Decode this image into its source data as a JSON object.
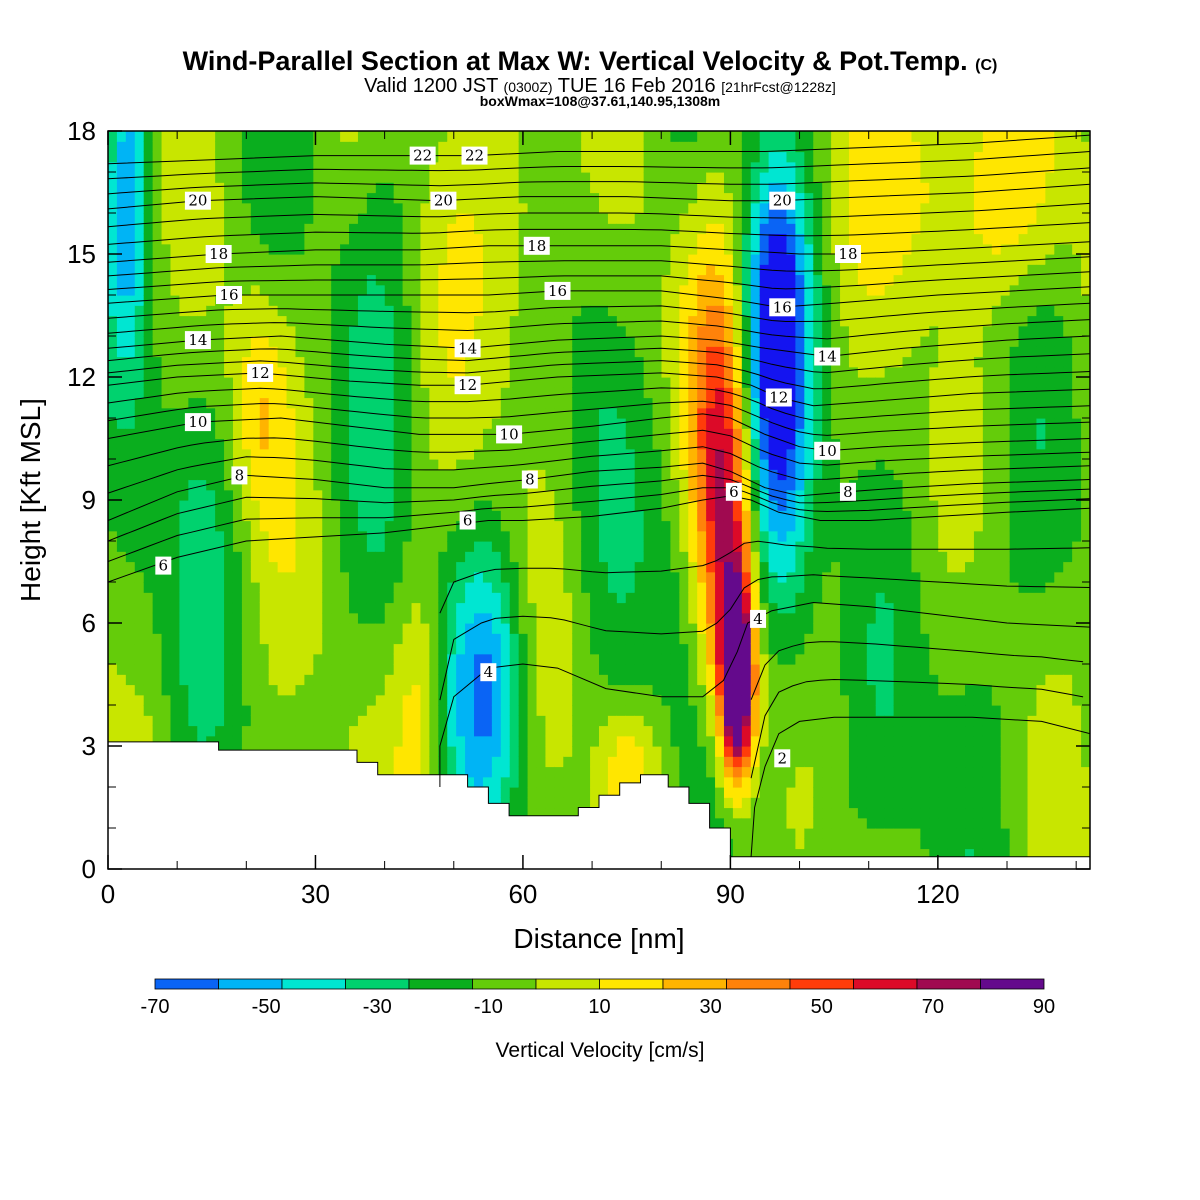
{
  "title": {
    "main": "Wind-Parallel Section at Max W: Vertical Velocity & Pot.Temp.",
    "copyright": "(C)",
    "valid_prefix": "Valid 1200 JST",
    "utc": "(0300Z)",
    "valid_date": "TUE 16 Feb 2016",
    "forecast": "[21hrFcst@1228z]",
    "box_info": "boxWmax=108@37.61,140.95,1308m"
  },
  "chart_data": {
    "type": "heatmap",
    "xlabel": "Distance [nm]",
    "ylabel": "Height [Kft MSL]",
    "xlim": [
      0,
      142
    ],
    "ylim": [
      0,
      18
    ],
    "x_ticks": [
      0,
      30,
      60,
      90,
      120
    ],
    "y_ticks": [
      0,
      3,
      6,
      9,
      12,
      15,
      18
    ],
    "x_tick_labels": [
      "0",
      "30",
      "60",
      "90",
      "120"
    ],
    "y_tick_labels": [
      "0",
      "3",
      "6",
      "9",
      "12",
      "15",
      "18"
    ],
    "colorbar": {
      "title": "Vertical Velocity [cm/s]",
      "labels": [
        "-70",
        "-50",
        "-30",
        "-10",
        "10",
        "30",
        "50",
        "70",
        "90"
      ],
      "colors": [
        "#1414f0",
        "#0a64f5",
        "#00b4f5",
        "#00e6d2",
        "#00d26e",
        "#0aae1e",
        "#64cc0a",
        "#c8e600",
        "#ffe600",
        "#ffb400",
        "#ff820a",
        "#ff3c0a",
        "#dc0a28",
        "#a00a50",
        "#640a8c"
      ]
    },
    "velocity_field": {
      "background_level": 6,
      "features": [
        {
          "x": 91,
          "y": 4.5,
          "sx": 1.6,
          "sy": 1.6,
          "amp": 10
        },
        {
          "x": 90,
          "y": 7.5,
          "sx": 2.8,
          "sy": 3.2,
          "amp": 5
        },
        {
          "x": 88,
          "y": 11.5,
          "sx": 3.5,
          "sy": 3.5,
          "amp": 3
        },
        {
          "x": 96,
          "y": 11,
          "sx": 3.5,
          "sy": 3.5,
          "amp": -5
        },
        {
          "x": 97,
          "y": 14,
          "sx": 3,
          "sy": 2.5,
          "amp": -3
        },
        {
          "x": 55,
          "y": 4.5,
          "sx": 4,
          "sy": 2.5,
          "amp": -4
        },
        {
          "x": 3,
          "y": 17,
          "sx": 2,
          "sy": 3,
          "amp": -4
        },
        {
          "x": 3,
          "y": 6,
          "sx": 3,
          "sy": 2,
          "amp": -1
        },
        {
          "x": 22,
          "y": 11.5,
          "sx": 3,
          "sy": 2,
          "amp": 2
        },
        {
          "x": 60,
          "y": 16,
          "sx": 6,
          "sy": 3,
          "amp": 2
        },
        {
          "x": 118,
          "y": 17,
          "sx": 6,
          "sy": 2,
          "amp": 2
        },
        {
          "x": 130,
          "y": 16.5,
          "sx": 6,
          "sy": 2,
          "amp": 2
        },
        {
          "x": 45,
          "y": 4,
          "sx": 2.5,
          "sy": 2.5,
          "amp": 2
        },
        {
          "x": 75,
          "y": 2.5,
          "sx": 3,
          "sy": 1,
          "amp": 2
        },
        {
          "x": 40,
          "y": 13,
          "sx": 4,
          "sy": 6,
          "amp": -1
        },
        {
          "x": 70,
          "y": 14,
          "sx": 4,
          "sy": 6,
          "amp": -1
        },
        {
          "x": 83,
          "y": 7,
          "sx": 3,
          "sy": 3,
          "amp": -1
        },
        {
          "x": 125,
          "y": 6,
          "sx": 5,
          "sy": 3,
          "amp": -1
        },
        {
          "x": 110,
          "y": 2,
          "sx": 10,
          "sy": 2,
          "amp": -0.5
        },
        {
          "x": 13,
          "y": 9,
          "sx": 4,
          "sy": 5,
          "amp": -1
        },
        {
          "x": 100,
          "y": 6,
          "sx": 3,
          "sy": 3,
          "amp": -1
        }
      ]
    },
    "terrain": [
      [
        0,
        3.1
      ],
      [
        16,
        3.1
      ],
      [
        16,
        2.9
      ],
      [
        36,
        2.9
      ],
      [
        36,
        2.6
      ],
      [
        39,
        2.6
      ],
      [
        39,
        2.3
      ],
      [
        52,
        2.3
      ],
      [
        52,
        2.0
      ],
      [
        55,
        2.0
      ],
      [
        55,
        1.6
      ],
      [
        58,
        1.6
      ],
      [
        58,
        1.3
      ],
      [
        68,
        1.3
      ],
      [
        68,
        1.5
      ],
      [
        71,
        1.5
      ],
      [
        71,
        1.8
      ],
      [
        74,
        1.8
      ],
      [
        74,
        2.1
      ],
      [
        77,
        2.1
      ],
      [
        77,
        2.3
      ],
      [
        81,
        2.3
      ],
      [
        81,
        2.0
      ],
      [
        84,
        2.0
      ],
      [
        84,
        1.6
      ],
      [
        87,
        1.6
      ],
      [
        87,
        1.0
      ],
      [
        90,
        1.0
      ],
      [
        90,
        0.3
      ],
      [
        142,
        0.3
      ]
    ],
    "contour_labels": [
      {
        "text": "22",
        "x": 45.5,
        "y": 17.4
      },
      {
        "text": "22",
        "x": 53,
        "y": 17.4
      },
      {
        "text": "20",
        "x": 13,
        "y": 16.3
      },
      {
        "text": "20",
        "x": 48.5,
        "y": 16.3
      },
      {
        "text": "20",
        "x": 97.5,
        "y": 16.3
      },
      {
        "text": "18",
        "x": 16,
        "y": 15.0
      },
      {
        "text": "18",
        "x": 62,
        "y": 15.2
      },
      {
        "text": "18",
        "x": 107,
        "y": 15.0
      },
      {
        "text": "16",
        "x": 17.5,
        "y": 14.0
      },
      {
        "text": "16",
        "x": 65,
        "y": 14.1
      },
      {
        "text": "16",
        "x": 97.5,
        "y": 13.7
      },
      {
        "text": "14",
        "x": 13,
        "y": 12.9
      },
      {
        "text": "14",
        "x": 52,
        "y": 12.7
      },
      {
        "text": "14",
        "x": 104,
        "y": 12.5
      },
      {
        "text": "12",
        "x": 22,
        "y": 12.1
      },
      {
        "text": "12",
        "x": 52,
        "y": 11.8
      },
      {
        "text": "12",
        "x": 97,
        "y": 11.5
      },
      {
        "text": "10",
        "x": 13,
        "y": 10.9
      },
      {
        "text": "10",
        "x": 58,
        "y": 10.6
      },
      {
        "text": "10",
        "x": 104,
        "y": 10.2
      },
      {
        "text": "8",
        "x": 19,
        "y": 9.6
      },
      {
        "text": "8",
        "x": 61,
        "y": 9.5
      },
      {
        "text": "8",
        "x": 107,
        "y": 9.2
      },
      {
        "text": "6",
        "x": 8,
        "y": 7.4
      },
      {
        "text": "6",
        "x": 52,
        "y": 8.5
      },
      {
        "text": "6",
        "x": 90.5,
        "y": 9.2
      },
      {
        "text": "4",
        "x": 55,
        "y": 4.8
      },
      {
        "text": "4",
        "x": 94,
        "y": 6.1
      },
      {
        "text": "2",
        "x": 97.5,
        "y": 2.7
      }
    ],
    "isentropes": [
      {
        "level": 2,
        "points": [
          [
            93,
            0.3
          ],
          [
            93.5,
            1.5
          ],
          [
            95,
            2.5
          ],
          [
            97,
            3.3
          ],
          [
            100,
            3.6
          ],
          [
            105,
            3.7
          ],
          [
            115,
            3.7
          ],
          [
            125,
            3.7
          ],
          [
            135,
            3.6
          ],
          [
            142,
            3.3
          ]
        ]
      },
      {
        "level": 4,
        "points": [
          [
            48,
            2.0
          ],
          [
            48,
            3
          ],
          [
            50,
            4.2
          ],
          [
            55,
            4.9
          ],
          [
            60,
            5.0
          ],
          [
            65,
            4.9
          ],
          [
            72,
            4.4
          ],
          [
            80,
            4.2
          ],
          [
            86,
            4.2
          ],
          [
            89,
            4.6
          ],
          [
            91,
            5.3
          ],
          [
            92.5,
            6.0
          ],
          [
            96,
            6.3
          ],
          [
            102,
            6.5
          ],
          [
            110,
            6.4
          ],
          [
            120,
            6.2
          ],
          [
            130,
            6.0
          ],
          [
            142,
            5.9
          ]
        ]
      },
      {
        "level": 6,
        "points": [
          [
            0,
            7.0
          ],
          [
            10,
            7.6
          ],
          [
            20,
            8.0
          ],
          [
            30,
            8.1
          ],
          [
            40,
            8.2
          ],
          [
            50,
            8.4
          ],
          [
            55,
            8.5
          ],
          [
            60,
            8.5
          ],
          [
            70,
            8.6
          ],
          [
            80,
            8.8
          ],
          [
            86,
            9.0
          ],
          [
            90,
            9.1
          ],
          [
            93,
            9.0
          ],
          [
            97,
            8.7
          ],
          [
            103,
            8.5
          ],
          [
            110,
            8.5
          ],
          [
            120,
            8.6
          ],
          [
            130,
            8.7
          ],
          [
            142,
            8.8
          ]
        ]
      },
      {
        "level": 8,
        "points": [
          [
            0,
            8.5
          ],
          [
            10,
            9.2
          ],
          [
            20,
            9.6
          ],
          [
            30,
            9.5
          ],
          [
            40,
            9.3
          ],
          [
            50,
            9.3
          ],
          [
            55,
            9.4
          ],
          [
            61,
            9.5
          ],
          [
            70,
            9.7
          ],
          [
            80,
            9.8
          ],
          [
            86,
            9.9
          ],
          [
            90,
            9.7
          ],
          [
            95,
            9.3
          ],
          [
            100,
            9.1
          ],
          [
            107,
            9.2
          ],
          [
            115,
            9.3
          ],
          [
            125,
            9.4
          ],
          [
            142,
            9.5
          ]
        ]
      },
      {
        "level": 10,
        "points": [
          [
            0,
            10.5
          ],
          [
            13,
            10.9
          ],
          [
            25,
            11.0
          ],
          [
            35,
            10.8
          ],
          [
            45,
            10.6
          ],
          [
            58,
            10.6
          ],
          [
            70,
            10.8
          ],
          [
            80,
            11.0
          ],
          [
            86,
            11.1
          ],
          [
            90,
            11.0
          ],
          [
            95,
            10.6
          ],
          [
            100,
            10.3
          ],
          [
            104,
            10.2
          ],
          [
            112,
            10.3
          ],
          [
            125,
            10.4
          ],
          [
            142,
            10.5
          ]
        ]
      },
      {
        "level": 12,
        "points": [
          [
            0,
            11.8
          ],
          [
            10,
            12.0
          ],
          [
            22,
            12.1
          ],
          [
            35,
            11.9
          ],
          [
            45,
            11.8
          ],
          [
            52,
            11.8
          ],
          [
            65,
            12.0
          ],
          [
            80,
            12.1
          ],
          [
            88,
            12.0
          ],
          [
            93,
            11.8
          ],
          [
            97,
            11.5
          ],
          [
            102,
            11.3
          ],
          [
            110,
            11.4
          ],
          [
            125,
            11.6
          ],
          [
            142,
            11.7
          ]
        ]
      },
      {
        "level": 14,
        "points": [
          [
            0,
            12.7
          ],
          [
            13,
            12.9
          ],
          [
            25,
            13.0
          ],
          [
            40,
            12.8
          ],
          [
            52,
            12.7
          ],
          [
            65,
            12.9
          ],
          [
            80,
            13.0
          ],
          [
            88,
            12.9
          ],
          [
            95,
            12.7
          ],
          [
            104,
            12.5
          ],
          [
            115,
            12.7
          ],
          [
            130,
            12.9
          ],
          [
            142,
            13.0
          ]
        ]
      },
      {
        "level": 16,
        "points": [
          [
            0,
            13.8
          ],
          [
            17,
            14.0
          ],
          [
            30,
            14.0
          ],
          [
            45,
            14.0
          ],
          [
            55,
            14.0
          ],
          [
            65,
            14.1
          ],
          [
            80,
            14.1
          ],
          [
            90,
            13.9
          ],
          [
            97,
            13.7
          ],
          [
            105,
            13.8
          ],
          [
            120,
            14.0
          ],
          [
            142,
            14.2
          ]
        ]
      },
      {
        "level": 18,
        "points": [
          [
            0,
            14.8
          ],
          [
            16,
            15.0
          ],
          [
            30,
            15.1
          ],
          [
            45,
            15.1
          ],
          [
            55,
            15.2
          ],
          [
            62,
            15.2
          ],
          [
            80,
            15.2
          ],
          [
            90,
            15.1
          ],
          [
            100,
            15.0
          ],
          [
            107,
            15.0
          ],
          [
            120,
            15.1
          ],
          [
            142,
            15.3
          ]
        ]
      },
      {
        "level": 20,
        "points": [
          [
            0,
            16.1
          ],
          [
            13,
            16.3
          ],
          [
            30,
            16.4
          ],
          [
            48,
            16.3
          ],
          [
            60,
            16.4
          ],
          [
            75,
            16.4
          ],
          [
            90,
            16.3
          ],
          [
            97,
            16.3
          ],
          [
            110,
            16.4
          ],
          [
            125,
            16.5
          ],
          [
            142,
            16.7
          ]
        ]
      },
      {
        "level": 22,
        "points": [
          [
            0,
            17.2
          ],
          [
            15,
            17.3
          ],
          [
            30,
            17.4
          ],
          [
            45,
            17.4
          ],
          [
            53,
            17.4
          ],
          [
            65,
            17.5
          ],
          [
            80,
            17.5
          ],
          [
            95,
            17.5
          ],
          [
            110,
            17.6
          ],
          [
            125,
            17.7
          ],
          [
            142,
            17.9
          ]
        ]
      }
    ]
  }
}
